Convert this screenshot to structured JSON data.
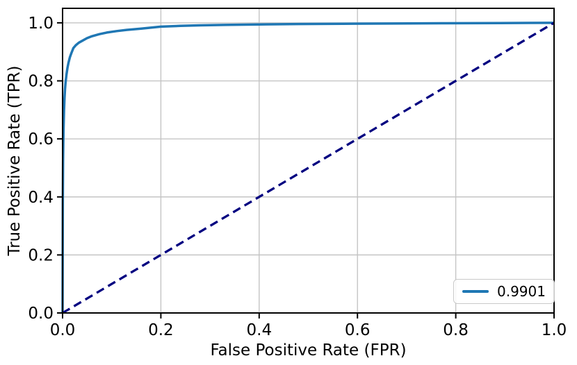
{
  "figure": {
    "background": "#ffffff"
  },
  "chart_data": {
    "type": "line",
    "title": "",
    "xlabel": "False Positive Rate (FPR)",
    "ylabel": "True Positive Rate (TPR)",
    "xlim": [
      0.0,
      1.0
    ],
    "ylim": [
      0.0,
      1.05
    ],
    "xticks": [
      0.0,
      0.2,
      0.4,
      0.6,
      0.8,
      1.0
    ],
    "yticks": [
      0.0,
      0.2,
      0.4,
      0.6,
      0.8,
      1.0
    ],
    "xtick_labels": [
      "0.0",
      "0.2",
      "0.4",
      "0.6",
      "0.8",
      "1.0"
    ],
    "ytick_labels": [
      "0.0",
      "0.2",
      "0.4",
      "0.6",
      "0.8",
      "1.0"
    ],
    "grid": true,
    "grid_color": "#c4c4c4",
    "spine_color": "#000000",
    "legend": {
      "position": "lower right",
      "entries": [
        {
          "label": "0.9901",
          "color": "#1f77b4"
        }
      ]
    },
    "series": [
      {
        "name": "roc-curve",
        "color": "#1f77b4",
        "style": "solid",
        "line_width": 3.5,
        "points": [
          [
            0.0,
            0.0
          ],
          [
            0.0005,
            0.38
          ],
          [
            0.001,
            0.52
          ],
          [
            0.0015,
            0.585
          ],
          [
            0.002,
            0.635
          ],
          [
            0.003,
            0.7
          ],
          [
            0.004,
            0.742
          ],
          [
            0.005,
            0.772
          ],
          [
            0.006,
            0.793
          ],
          [
            0.008,
            0.822
          ],
          [
            0.01,
            0.845
          ],
          [
            0.012,
            0.862
          ],
          [
            0.015,
            0.882
          ],
          [
            0.018,
            0.896
          ],
          [
            0.022,
            0.913
          ],
          [
            0.027,
            0.923
          ],
          [
            0.033,
            0.9315
          ],
          [
            0.04,
            0.938
          ],
          [
            0.05,
            0.9475
          ],
          [
            0.06,
            0.954
          ],
          [
            0.075,
            0.961
          ],
          [
            0.09,
            0.9665
          ],
          [
            0.11,
            0.9715
          ],
          [
            0.13,
            0.9755
          ],
          [
            0.16,
            0.98
          ],
          [
            0.2,
            0.987
          ],
          [
            0.24,
            0.9895
          ],
          [
            0.28,
            0.9915
          ],
          [
            0.33,
            0.993
          ],
          [
            0.4,
            0.9945
          ],
          [
            0.48,
            0.9958
          ],
          [
            0.57,
            0.9968
          ],
          [
            0.67,
            0.9977
          ],
          [
            0.78,
            0.9986
          ],
          [
            0.89,
            0.9993
          ],
          [
            1.0,
            1.0
          ]
        ]
      },
      {
        "name": "chance-diagonal",
        "color": "#000080",
        "style": "dashed",
        "line_width": 3.3,
        "dash": "12 7",
        "points": [
          [
            0.0,
            0.0
          ],
          [
            1.0,
            1.0
          ]
        ]
      }
    ]
  }
}
